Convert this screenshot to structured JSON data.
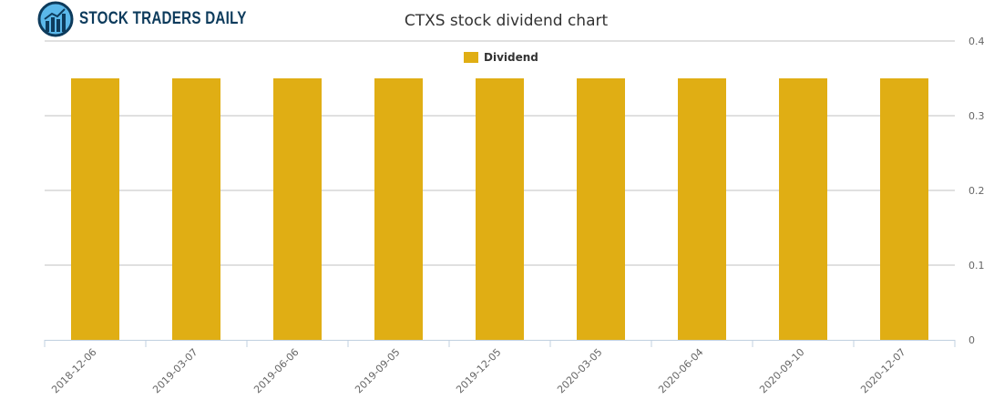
{
  "brand": {
    "name": "STOCK TRADERS DAILY"
  },
  "chart_data": {
    "type": "bar",
    "title": "CTXS stock dividend chart",
    "categories": [
      "2018-12-06",
      "2019-03-07",
      "2019-06-06",
      "2019-09-05",
      "2019-12-05",
      "2020-03-05",
      "2020-06-04",
      "2020-09-10",
      "2020-12-07"
    ],
    "series": [
      {
        "name": "Dividend",
        "values": [
          0.35,
          0.35,
          0.35,
          0.35,
          0.35,
          0.35,
          0.35,
          0.35,
          0.35
        ],
        "color": "#e0ae14"
      }
    ],
    "yticks": [
      "0",
      "0.1",
      "0.2",
      "0.3",
      "0.4"
    ],
    "ylim": [
      0,
      0.4
    ],
    "yaxis_position": "right",
    "legend": "top-center",
    "grid": true
  }
}
